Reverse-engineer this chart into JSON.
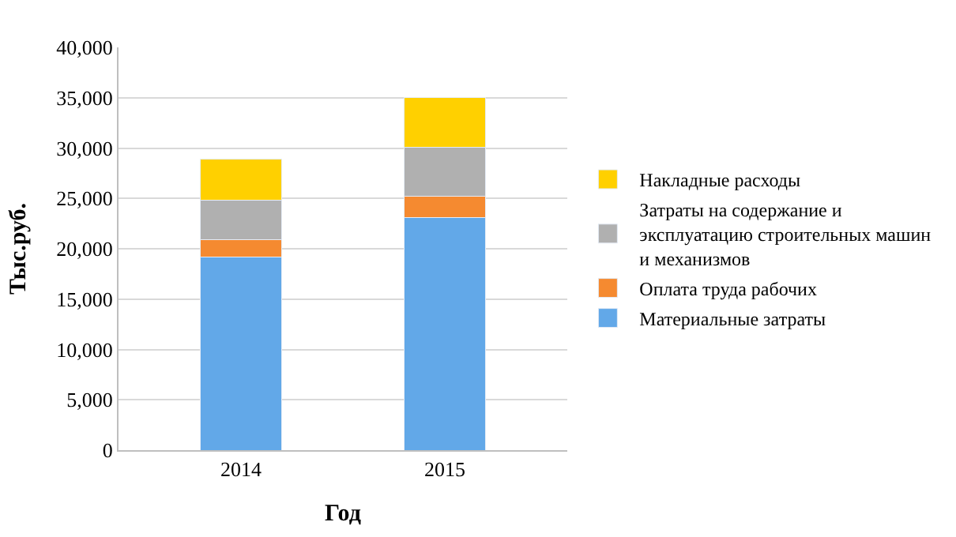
{
  "chart_data": {
    "type": "bar",
    "stacked": true,
    "xlabel": "Год",
    "ylabel": "Тыс.руб.",
    "categories": [
      "2014",
      "2015"
    ],
    "ylim": [
      0,
      40000
    ],
    "yticks": [
      {
        "value": 0,
        "label": "0"
      },
      {
        "value": 5000,
        "label": "5,000"
      },
      {
        "value": 10000,
        "label": "10,000"
      },
      {
        "value": 15000,
        "label": "15,000"
      },
      {
        "value": 20000,
        "label": "20,000"
      },
      {
        "value": 25000,
        "label": "25,000"
      },
      {
        "value": 30000,
        "label": "30,000"
      },
      {
        "value": 35000,
        "label": "35,000"
      },
      {
        "value": 40000,
        "label": "40,000"
      }
    ],
    "grid": "y",
    "legend": "right",
    "series": [
      {
        "name": "Материальные затраты",
        "color": "#62a8e8",
        "values": [
          19200,
          23100
        ]
      },
      {
        "name": "Оплата труда рабочих",
        "color": "#f58a30",
        "values": [
          1700,
          2100
        ]
      },
      {
        "name": "Затраты на содержание и эксплуатацию строительных машин и механизмов",
        "color": "#b0b0b0",
        "values": [
          3900,
          4900
        ]
      },
      {
        "name": "Накладные расходы",
        "color": "#ffd000",
        "values": [
          4100,
          4900
        ]
      }
    ]
  }
}
